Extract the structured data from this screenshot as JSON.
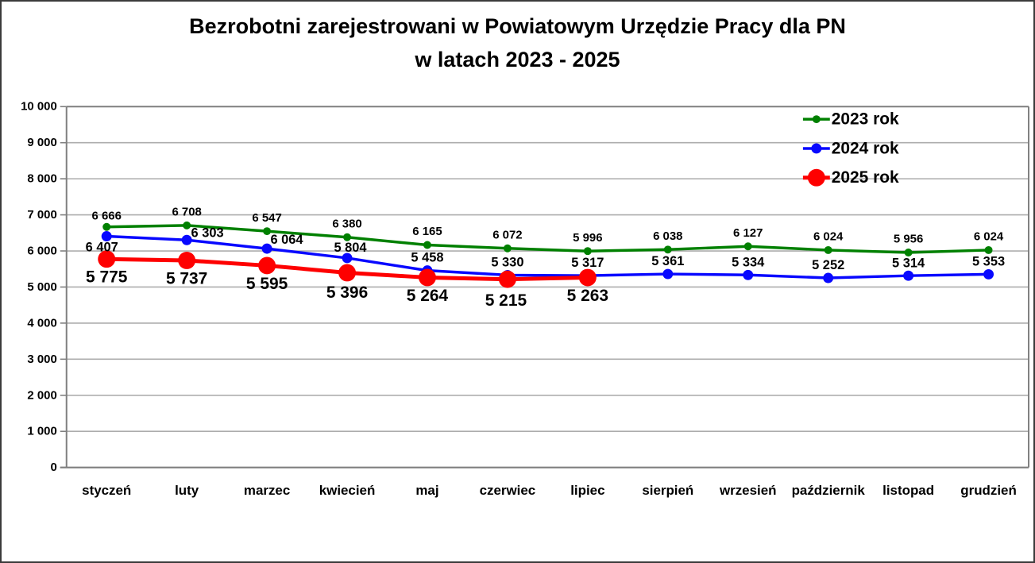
{
  "chart_data": {
    "type": "line",
    "title_line1": "Bezrobotni zarejestrowani w Powiatowym Urzędzie Pracy dla PN",
    "title_line2": "w latach 2023 - 2025",
    "categories": [
      "styczeń",
      "luty",
      "marzec",
      "kwiecień",
      "maj",
      "czerwiec",
      "lipiec",
      "sierpień",
      "wrzesień",
      "październik",
      "listopad",
      "grudzień"
    ],
    "series": [
      {
        "name": "2023 rok",
        "color": "#008000",
        "values": [
          6666,
          6708,
          6547,
          6380,
          6165,
          6072,
          5996,
          6038,
          6127,
          6024,
          5956,
          6024
        ]
      },
      {
        "name": "2024 rok",
        "color": "#0808ff",
        "values": [
          6407,
          6303,
          6064,
          5804,
          5458,
          5330,
          5317,
          5361,
          5334,
          5252,
          5314,
          5353
        ]
      },
      {
        "name": "2025 rok",
        "color": "#fe0000",
        "values": [
          5775,
          5737,
          5595,
          5396,
          5264,
          5215,
          5263
        ]
      }
    ],
    "ylim": [
      0,
      10000
    ],
    "ytick_step": 1000,
    "grid": "horizontal",
    "legend_position": "top-right",
    "data_labels": true,
    "colors": {
      "grid": "#adadad",
      "axis": "#7f7f7f",
      "text": "#000000",
      "background": "#ffffff"
    }
  }
}
